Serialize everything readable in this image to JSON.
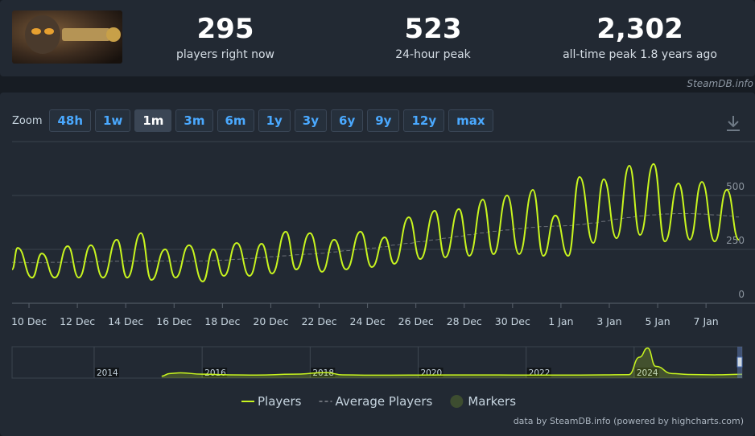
{
  "header": {
    "stats": [
      {
        "value": "295",
        "label": "players right now"
      },
      {
        "value": "523",
        "label": "24-hour peak"
      },
      {
        "value": "2,302",
        "label": "all-time peak 1.8 years ago"
      }
    ],
    "watermark": "SteamDB.info"
  },
  "zoom": {
    "label": "Zoom",
    "options": [
      "48h",
      "1w",
      "1m",
      "3m",
      "6m",
      "1y",
      "3y",
      "6y",
      "9y",
      "12y",
      "max"
    ],
    "selected_index": 2
  },
  "credits": "data by SteamDB.info (powered by highcharts.com)",
  "chart_data": [
    {
      "type": "line",
      "x": [
        -0.7,
        -0.47,
        0.13,
        0.53,
        1.07,
        1.6,
        2.06,
        2.56,
        3.06,
        3.63,
        4.06,
        4.63,
        5.06,
        5.63,
        6.06,
        6.62,
        7.19,
        7.62,
        8.06,
        8.59,
        9.12,
        9.62,
        10.05,
        10.62,
        11.05,
        11.62,
        12.12,
        12.62,
        13.12,
        13.71,
        14.18,
        14.71,
        15.11,
        15.71,
        16.18,
        16.78,
        17.21,
        17.78,
        18.21,
        18.77,
        19.21,
        19.77,
        20.27,
        20.84,
        21.27,
        21.77,
        22.3,
        22.77,
        23.34,
        23.77,
        24.3,
        24.83,
        25.27,
        25.83,
        26.3,
        26.86,
        27.33,
        27.83,
        28.36,
        28.86,
        29.36
      ],
      "series": [
        {
          "name": "Players",
          "color": "#c8f51f",
          "values": [
            157,
            257,
            119,
            231,
            119,
            265,
            119,
            269,
            119,
            295,
            119,
            325,
            108,
            250,
            119,
            269,
            101,
            250,
            127,
            280,
            127,
            276,
            138,
            332,
            157,
            325,
            146,
            295,
            157,
            332,
            168,
            306,
            183,
            399,
            205,
            429,
            213,
            437,
            220,
            481,
            228,
            500,
            228,
            526,
            220,
            407,
            220,
            586,
            280,
            575,
            302,
            638,
            317,
            646,
            287,
            556,
            295,
            563,
            287,
            526,
            295
          ]
        },
        {
          "name": "Average Players",
          "color": "#6b7078",
          "dashed": true,
          "values": [
            190,
            190,
            188,
            188,
            190,
            190,
            192,
            192,
            194,
            195,
            196,
            196,
            196,
            196,
            195,
            195,
            196,
            198,
            200,
            204,
            208,
            212,
            216,
            220,
            225,
            228,
            232,
            238,
            244,
            250,
            256,
            262,
            270,
            278,
            286,
            294,
            302,
            310,
            318,
            326,
            334,
            340,
            346,
            352,
            356,
            358,
            360,
            365,
            372,
            380,
            390,
            398,
            405,
            410,
            414,
            416,
            416,
            414,
            410,
            406,
            400
          ]
        }
      ],
      "legend_extra": {
        "name": "Markers",
        "color": "#3d4d30"
      },
      "xlim": [
        -0.7,
        29.36
      ],
      "xticks": [
        {
          "value": 0,
          "label": "10 Dec"
        },
        {
          "value": 2,
          "label": "12 Dec"
        },
        {
          "value": 4,
          "label": "14 Dec"
        },
        {
          "value": 6,
          "label": "16 Dec"
        },
        {
          "value": 8,
          "label": "18 Dec"
        },
        {
          "value": 10,
          "label": "20 Dec"
        },
        {
          "value": 12,
          "label": "22 Dec"
        },
        {
          "value": 14,
          "label": "24 Dec"
        },
        {
          "value": 16,
          "label": "26 Dec"
        },
        {
          "value": 18,
          "label": "28 Dec"
        },
        {
          "value": 20,
          "label": "30 Dec"
        },
        {
          "value": 22,
          "label": "1 Jan"
        },
        {
          "value": 24,
          "label": "3 Jan"
        },
        {
          "value": 26,
          "label": "5 Jan"
        },
        {
          "value": 28,
          "label": "7 Jan"
        }
      ],
      "ylim": [
        0,
        750
      ],
      "yticks": [
        0,
        250,
        500
      ],
      "grid": true
    },
    {
      "type": "line",
      "x": [
        2015.25,
        2015.4,
        2015.6,
        2016,
        2016.5,
        2017,
        2017.7,
        2018.3,
        2018.6,
        2019,
        2020,
        2021,
        2022,
        2023,
        2023.9,
        2024.1,
        2024.25,
        2024.4,
        2024.7,
        2025,
        2025.5,
        2026
      ],
      "series": [
        {
          "color": "#c8f51f",
          "values": [
            150,
            350,
            400,
            300,
            250,
            230,
            300,
            420,
            250,
            220,
            230,
            240,
            230,
            230,
            260,
            1600,
            2302,
            900,
            350,
            280,
            250,
            295
          ]
        }
      ],
      "xlim": [
        2012.48,
        2026
      ],
      "xticks": [
        2014,
        2016,
        2018,
        2020,
        2022,
        2024
      ],
      "ylim": [
        0,
        2400
      ]
    }
  ]
}
